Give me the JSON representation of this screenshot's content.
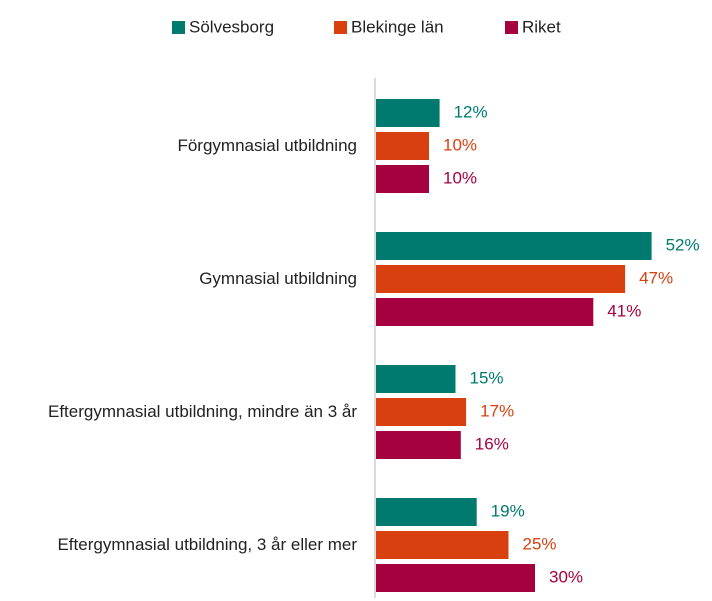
{
  "chart_data": {
    "type": "bar",
    "orientation": "horizontal",
    "categories": [
      "Förgymnasial utbildning",
      "Gymnasial utbildning",
      "Eftergymnasial utbildning, mindre än 3 år",
      "Eftergymnasial utbildning, 3 år eller mer"
    ],
    "series": [
      {
        "name": "Sölvesborg",
        "color": "#007a6e",
        "values": [
          12,
          52,
          15,
          19
        ],
        "value_labels": [
          "12%",
          "52%",
          "15%",
          "19%"
        ]
      },
      {
        "name": "Blekinge län",
        "color": "#d9400f",
        "values": [
          10,
          47,
          17,
          25
        ],
        "value_labels": [
          "10%",
          "47%",
          "17%",
          "25%"
        ]
      },
      {
        "name": "Riket",
        "color": "#a50040",
        "values": [
          10,
          41,
          16,
          30
        ],
        "value_labels": [
          "10%",
          "41%",
          "16%",
          "30%"
        ]
      }
    ],
    "legend": "top"
  }
}
